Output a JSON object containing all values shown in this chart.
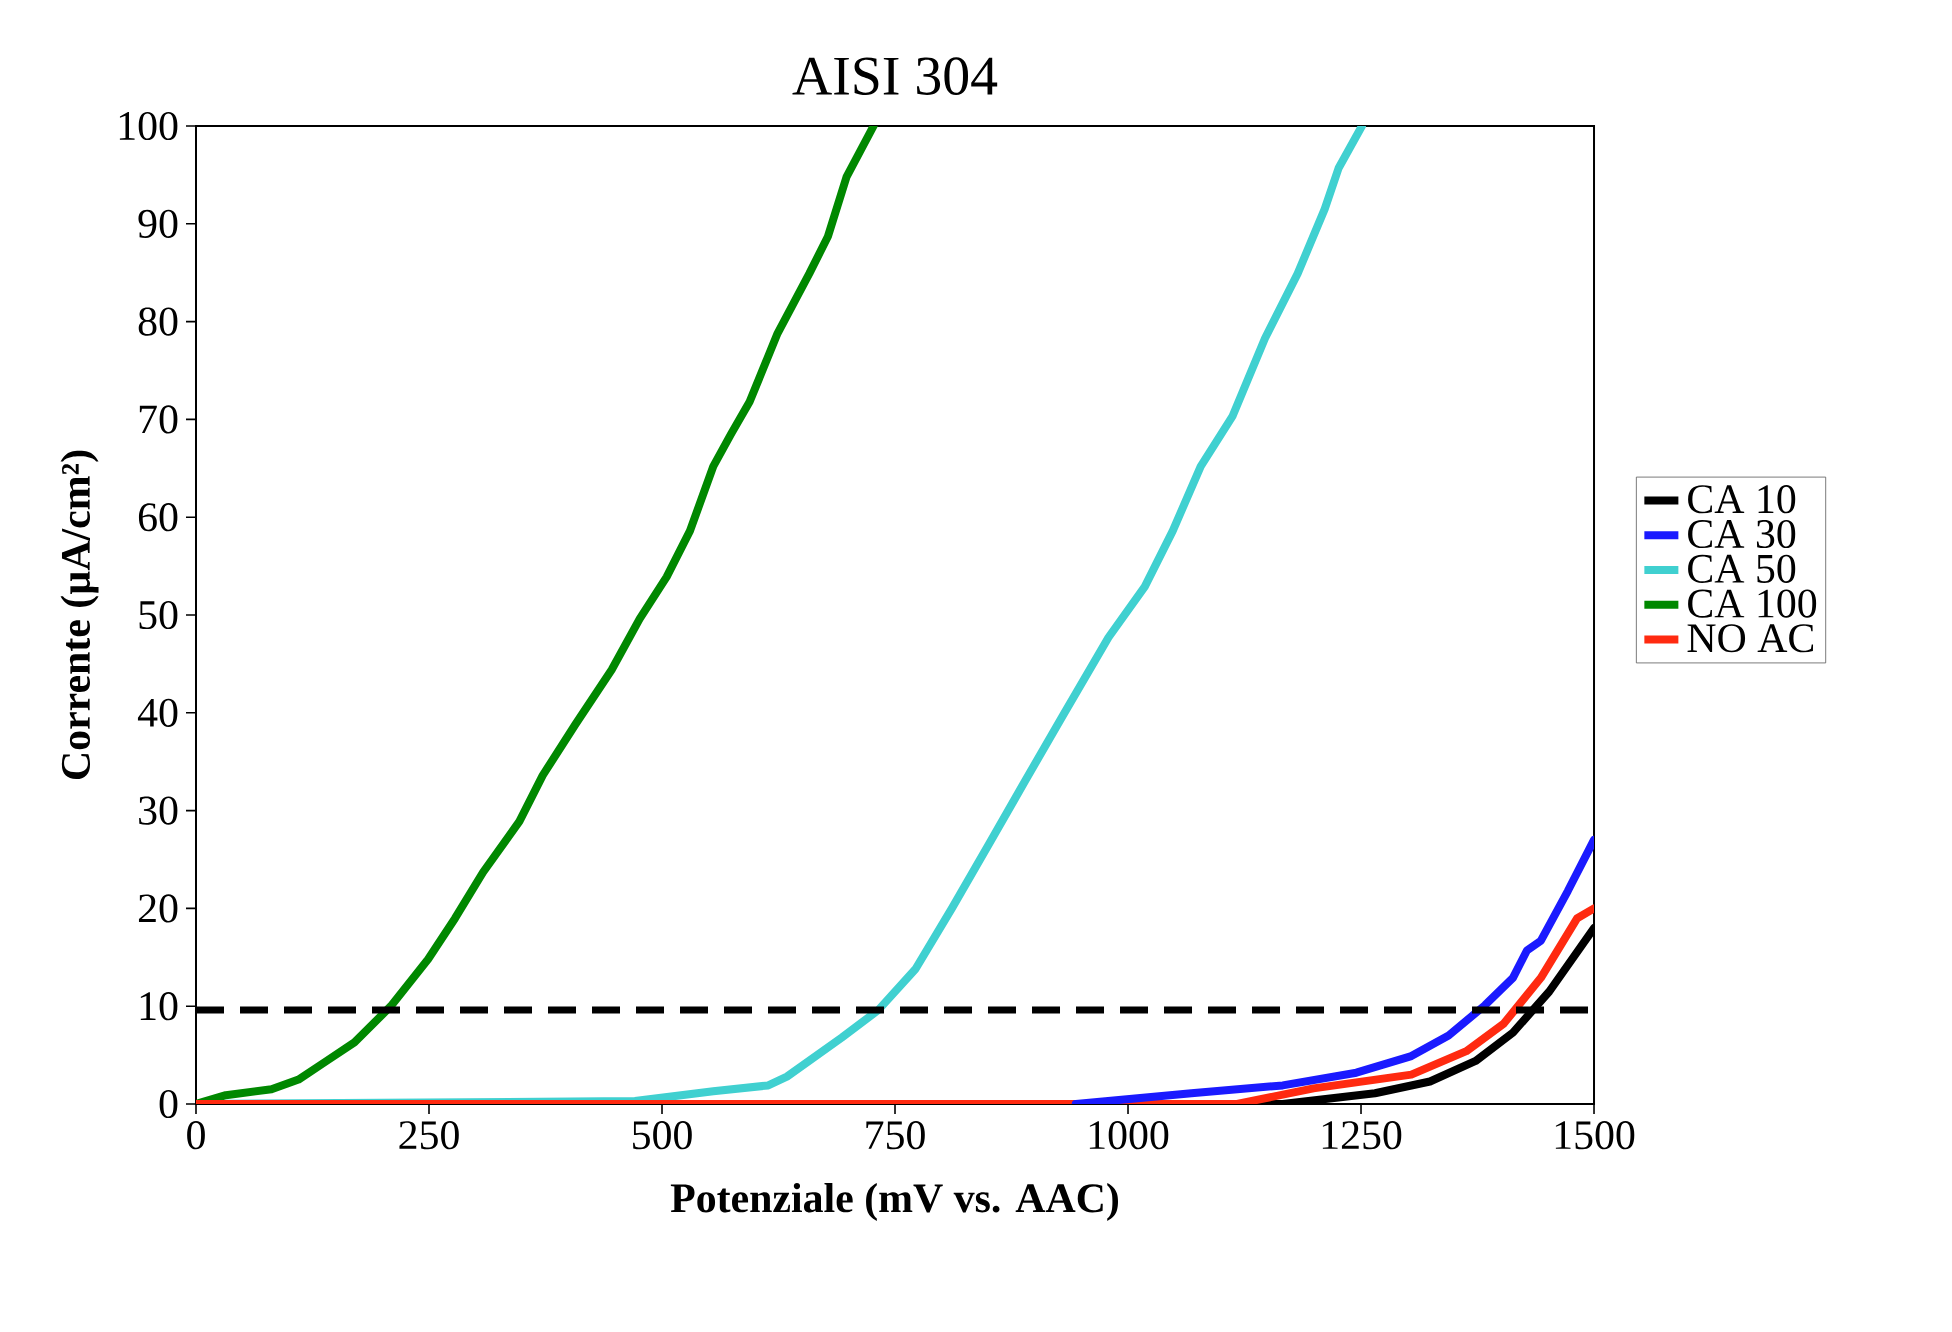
{
  "chart_data": {
    "type": "line",
    "title": "AISI 304",
    "xlabel": "Potenziale (mV vs. AAC)",
    "ylabel": "Corrente (µA/cm²)",
    "xlim": [
      0,
      1500
    ],
    "ylim": [
      0,
      100
    ],
    "xticks": [
      0,
      250,
      500,
      750,
      1000,
      1250,
      1500
    ],
    "yticks": [
      0,
      10,
      20,
      30,
      40,
      50,
      60,
      70,
      80,
      90,
      100
    ],
    "legend": "right",
    "marker": "none",
    "line_style": "solid",
    "ref_lines": [
      {
        "axis": "y",
        "value": 9.6,
        "color": "#000000",
        "line_style": "dashed"
      }
    ],
    "series": [
      {
        "name": "CA 10",
        "color": "#000000",
        "x": [
          0,
          1166,
          1265,
          1324,
          1373,
          1413,
          1452,
          1500
        ],
        "values": [
          0,
          0,
          1.1,
          2.3,
          4.4,
          7.3,
          11.5,
          18
        ]
      },
      {
        "name": "CA 30",
        "color": "#1a1aff",
        "x": [
          944,
          1068,
          1166,
          1245,
          1304,
          1344,
          1383,
          1413,
          1428,
          1443,
          1472,
          1500
        ],
        "values": [
          0,
          1.1,
          1.9,
          3.2,
          4.9,
          7,
          10.1,
          12.9,
          15.7,
          16.7,
          21.8,
          27
        ]
      },
      {
        "name": "CA 50",
        "color": "#40d0d0",
        "x": [
          0,
          471,
          555,
          614,
          634,
          693,
          732,
          772,
          811,
          851,
          890,
          930,
          979,
          1018,
          1048,
          1078,
          1112,
          1147,
          1182,
          1211,
          1226,
          1251
        ],
        "values": [
          0,
          0.3,
          1.3,
          1.9,
          2.8,
          6.8,
          9.6,
          13.8,
          20,
          26.6,
          33.1,
          39.7,
          47.7,
          52.9,
          58.6,
          65.2,
          70.3,
          78.3,
          84.9,
          91.5,
          95.7,
          100
        ]
      },
      {
        "name": "CA 100",
        "color": "#008800",
        "x": [
          0,
          32,
          81,
          110,
          140,
          170,
          209,
          249,
          278,
          308,
          347,
          372,
          407,
          446,
          476,
          505,
          530,
          555,
          574,
          594,
          624,
          658,
          678,
          698,
          727
        ],
        "values": [
          0,
          0.9,
          1.5,
          2.5,
          4.4,
          6.3,
          10,
          14.8,
          19,
          23.7,
          28.9,
          33.6,
          38.8,
          44.4,
          49.6,
          53.9,
          58.6,
          65.2,
          68.5,
          71.8,
          78.8,
          84.9,
          88.7,
          94.8,
          100
        ]
      },
      {
        "name": "NO AC",
        "color": "#ff2a10",
        "x": [
          0,
          1117,
          1199,
          1304,
          1363,
          1403,
          1443,
          1482,
          1500
        ],
        "values": [
          0,
          0,
          1.6,
          3,
          5.4,
          8.2,
          12.9,
          19,
          20
        ]
      }
    ]
  }
}
